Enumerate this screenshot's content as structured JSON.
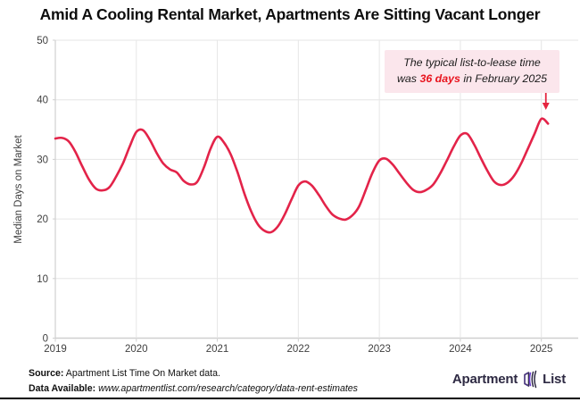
{
  "title": "Amid A Cooling Rental Market, Apartments Are Sitting Vacant Longer",
  "colors": {
    "line": "#e32349",
    "annotation_bg": "#fbe6ec",
    "annotation_highlight": "#e8141e",
    "arrow": "#e5243e",
    "grid": "#e6e6e6",
    "axis": "#d0d0d0",
    "tick_text": "#3f3f3f",
    "logo_text": "#2e2a43",
    "logo_icon_purple": "#6e3fd3"
  },
  "annotation": {
    "line1": "The typical list-to-lease time",
    "line2_prefix": "was ",
    "highlight": "36 days",
    "line2_suffix": " in February 2025"
  },
  "chart_data": {
    "type": "line",
    "title": "",
    "xlabel": "",
    "ylabel": "Median Days on Market",
    "ylim": [
      0,
      50
    ],
    "yticks": [
      0,
      10,
      20,
      30,
      40,
      50
    ],
    "x_tick_labels": [
      "2019",
      "2020",
      "2021",
      "2022",
      "2023",
      "2024",
      "2025"
    ],
    "grid": true,
    "legend": "none",
    "series": [
      {
        "name": "Median days on market",
        "start": "2019-01",
        "frequency": "monthly",
        "end": "2025-02",
        "values": [
          33.5,
          33.6,
          33.0,
          31.2,
          28.8,
          26.6,
          25.1,
          24.8,
          25.3,
          27.1,
          29.3,
          32.1,
          34.6,
          34.9,
          33.3,
          31.1,
          29.3,
          28.3,
          27.8,
          26.4,
          25.8,
          26.2,
          28.6,
          31.8,
          33.8,
          32.8,
          30.8,
          27.8,
          24.3,
          21.3,
          19.1,
          18.0,
          17.8,
          18.8,
          20.8,
          23.3,
          25.6,
          26.3,
          25.6,
          24.1,
          22.3,
          20.8,
          20.1,
          19.9,
          20.6,
          22.1,
          24.9,
          27.8,
          29.8,
          30.1,
          29.1,
          27.6,
          26.1,
          24.9,
          24.5,
          24.9,
          25.8,
          27.6,
          29.8,
          32.1,
          34.0,
          34.3,
          32.6,
          30.3,
          28.1,
          26.3,
          25.7,
          26.1,
          27.3,
          29.3,
          31.8,
          34.3,
          36.8,
          36.0
        ]
      }
    ],
    "annotation_value": "36 days in February 2025"
  },
  "source": {
    "label1": "Source:",
    "text1": " Apartment List Time On Market data.",
    "label2": "Data Available:",
    "text2": " www.apartmentlist.com/research/category/data-rent-estimates"
  },
  "logo": {
    "part1": "Apartment",
    "part2": "List"
  }
}
